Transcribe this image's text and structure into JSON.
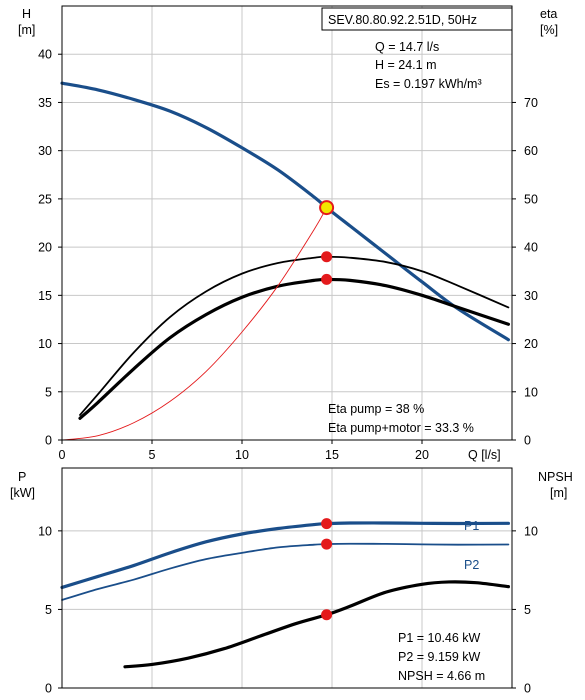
{
  "colors": {
    "grid": "#c8c8c8",
    "head_curve": "#1a4e8a",
    "power_curve": "#1a4e8a",
    "p2_curve": "#1a4e8a",
    "eta_curve": "#000000",
    "npsh_curve": "#000000",
    "system_curve": "#e41a1c",
    "duty_marker": "#e41a1c",
    "op_point_fill": "#f2e600"
  },
  "chart_data": [
    {
      "type": "line",
      "title": "SEV.80.80.92.2.51D, 50Hz",
      "xlabel": "Q [l/s]",
      "ylabel_left": "H",
      "ylabel_left_unit": "[m]",
      "ylabel_right": "eta",
      "ylabel_right_unit": "[%]",
      "xlim": [
        0,
        25
      ],
      "ylim_left": [
        0,
        45
      ],
      "ylim_right": [
        0,
        90
      ],
      "x_ticks": [
        0,
        5,
        10,
        15,
        20
      ],
      "y_ticks_left": [
        0,
        5,
        10,
        15,
        20,
        25,
        30,
        35,
        40
      ],
      "y_ticks_right": [
        0,
        10,
        20,
        30,
        40,
        50,
        60,
        70
      ],
      "grid": true,
      "series": [
        {
          "key": "head",
          "axis": "left",
          "x": [
            0,
            2,
            4,
            6,
            8,
            10,
            12,
            14,
            14.7,
            16,
            18,
            20,
            22,
            24.8
          ],
          "y": [
            37,
            36.3,
            35.3,
            34.1,
            32.4,
            30.3,
            28,
            25.2,
            24.1,
            22.2,
            19.3,
            16.4,
            13.6,
            10.4
          ]
        },
        {
          "key": "eta_pump",
          "axis": "right",
          "x": [
            1,
            2,
            4,
            6,
            8,
            10,
            12,
            14,
            14.7,
            16,
            18,
            20,
            22,
            24.8
          ],
          "y": [
            5.2,
            9.5,
            18.2,
            25.5,
            30.8,
            34.5,
            36.7,
            37.8,
            38,
            37.8,
            36.9,
            35,
            32,
            27.5
          ]
        },
        {
          "key": "eta_pump_motor",
          "axis": "right",
          "x": [
            1,
            2,
            4,
            6,
            8,
            10,
            12,
            14,
            14.7,
            16,
            18,
            20,
            22,
            24.8
          ],
          "y": [
            4.5,
            7.8,
            14.8,
            21.2,
            26,
            29.6,
            31.9,
            33.1,
            33.3,
            33.1,
            32,
            30,
            27.5,
            24
          ]
        },
        {
          "key": "system_curve",
          "axis": "left",
          "x": [
            0,
            2,
            4,
            6,
            8,
            10,
            12,
            14,
            14.7
          ],
          "y": [
            0,
            0.45,
            1.8,
            4,
            7.1,
            11.2,
            16,
            21.8,
            24.1
          ]
        }
      ],
      "markers": [
        {
          "key": "eta_pump_point",
          "axis": "right",
          "x": 14.7,
          "y": 38
        },
        {
          "key": "eta_pump_motor_point",
          "axis": "right",
          "x": 14.7,
          "y": 33.3
        },
        {
          "key": "operating_point",
          "axis": "left",
          "x": 14.7,
          "y": 24.1
        }
      ],
      "annotations": {
        "top_right": [
          "Q = 14.7 l/s",
          "H = 24.1 m",
          "Es = 0.197 kWh/m³"
        ],
        "bottom_right": [
          "Eta pump = 38 %",
          "Eta pump+motor = 33.3 %"
        ]
      }
    },
    {
      "type": "line",
      "ylabel_left": "P",
      "ylabel_left_unit": "[kW]",
      "ylabel_right": "NPSH",
      "ylabel_right_unit": "[m]",
      "xlim": [
        0,
        25
      ],
      "ylim_left": [
        0,
        14
      ],
      "ylim_right": [
        0,
        14
      ],
      "y_ticks_left": [
        0,
        5,
        10
      ],
      "y_ticks_right": [
        0,
        5,
        10
      ],
      "grid": true,
      "series": [
        {
          "key": "p1",
          "name": "P1",
          "axis": "left",
          "x": [
            0,
            2,
            4,
            6,
            8,
            10,
            12,
            14,
            14.7,
            16,
            18,
            20,
            22,
            24.8
          ],
          "y": [
            6.4,
            7.1,
            7.8,
            8.6,
            9.3,
            9.8,
            10.15,
            10.4,
            10.46,
            10.5,
            10.5,
            10.48,
            10.47,
            10.48
          ]
        },
        {
          "key": "p2",
          "name": "P2",
          "axis": "left",
          "x": [
            0,
            2,
            4,
            6,
            8,
            10,
            12,
            14,
            14.7,
            16,
            18,
            20,
            22,
            24.8
          ],
          "y": [
            5.6,
            6.3,
            6.9,
            7.6,
            8.2,
            8.6,
            8.95,
            9.12,
            9.159,
            9.18,
            9.17,
            9.14,
            9.12,
            9.13
          ]
        },
        {
          "key": "npsh",
          "axis": "right",
          "x": [
            3.5,
            5,
            7,
            9,
            11,
            13,
            14.7,
            16,
            18,
            20,
            21.5,
            23,
            24.8
          ],
          "y": [
            1.35,
            1.5,
            1.9,
            2.5,
            3.3,
            4.1,
            4.66,
            5.2,
            6.1,
            6.6,
            6.75,
            6.7,
            6.45
          ]
        }
      ],
      "markers": [
        {
          "key": "p1_point",
          "axis": "left",
          "x": 14.7,
          "y": 10.46
        },
        {
          "key": "p2_point",
          "axis": "left",
          "x": 14.7,
          "y": 9.159
        },
        {
          "key": "npsh_point",
          "axis": "right",
          "x": 14.7,
          "y": 4.66
        }
      ],
      "series_labels": {
        "p1": "P1",
        "p2": "P2"
      },
      "annotations": {
        "bottom_right": [
          "P1 = 10.46 kW",
          "P2 = 9.159 kW",
          "NPSH = 4.66 m"
        ]
      }
    }
  ]
}
